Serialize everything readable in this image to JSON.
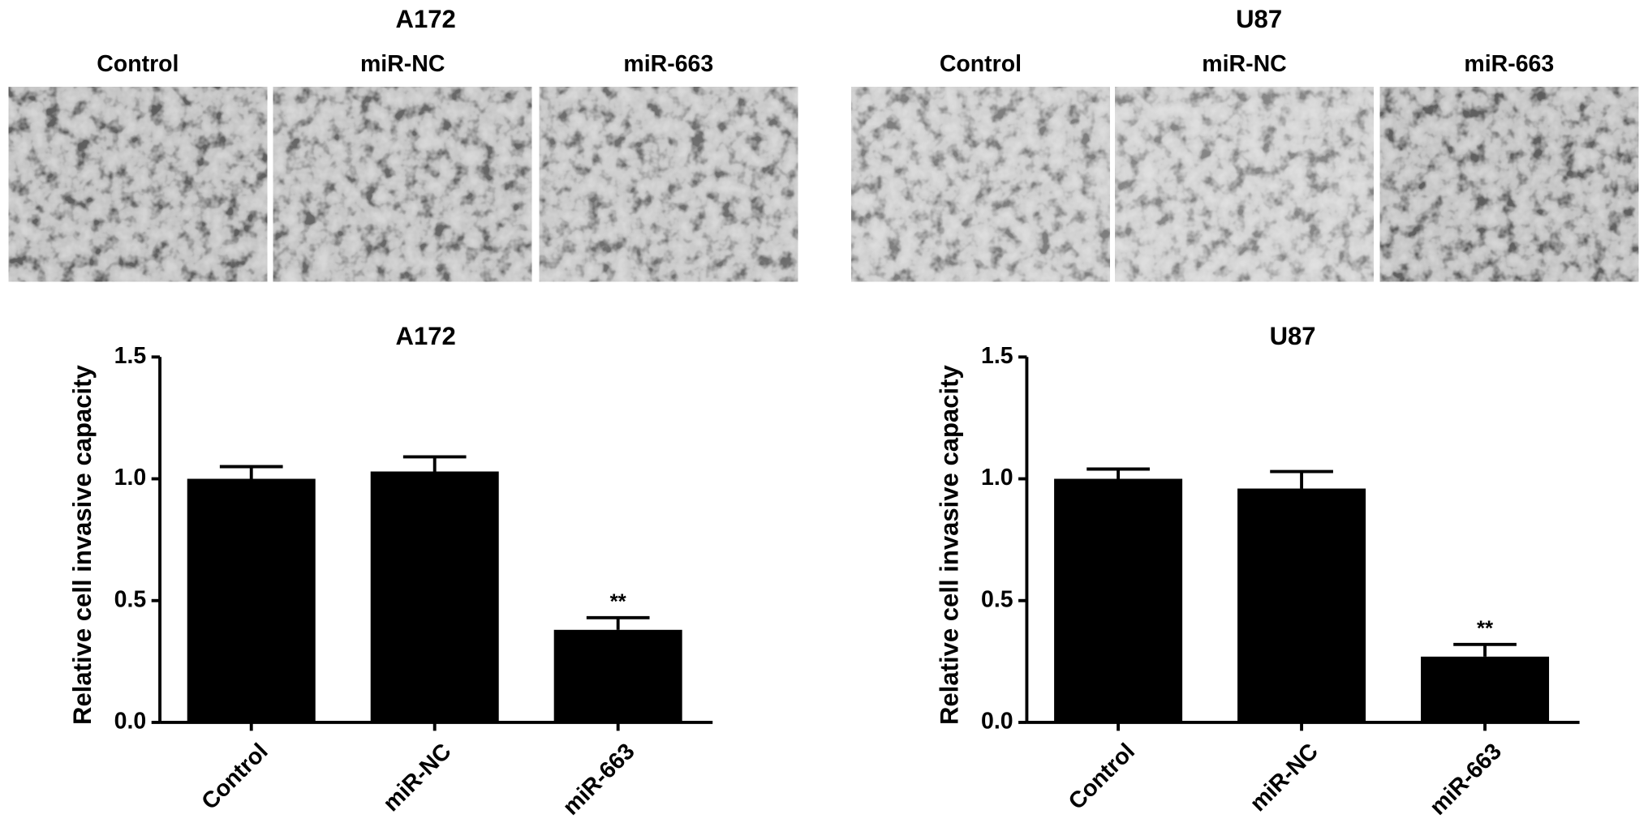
{
  "micrographs": [
    {
      "title": "A172",
      "labels": [
        "Control",
        "miR-NC",
        "miR-663"
      ]
    },
    {
      "title": "U87",
      "labels": [
        "Control",
        "miR-NC",
        "miR-663"
      ]
    }
  ],
  "chart_data": [
    {
      "type": "bar",
      "title": "A172",
      "y_label": "Relative cell invasive capacity",
      "categories": [
        "Control",
        "miR-NC",
        "miR-663"
      ],
      "values": [
        1.0,
        1.03,
        0.38
      ],
      "errors": [
        0.05,
        0.06,
        0.05
      ],
      "color": "#000000",
      "ylim": [
        0,
        1.5
      ],
      "yticks": [
        {
          "value": 0,
          "label": "0.0"
        },
        {
          "value": 0.5,
          "label": "0.5"
        },
        {
          "value": 1,
          "label": "1.0"
        },
        {
          "value": 1.5,
          "label": "1.5"
        }
      ],
      "annotations": [
        {
          "text": "**",
          "category": "miR-663"
        }
      ]
    },
    {
      "type": "bar",
      "title": "U87",
      "y_label": "Relative cell invasive capacity",
      "categories": [
        "Control",
        "miR-NC",
        "miR-663"
      ],
      "values": [
        1.0,
        0.96,
        0.27
      ],
      "errors": [
        0.04,
        0.07,
        0.05
      ],
      "color": "#000000",
      "ylim": [
        0,
        1.5
      ],
      "yticks": [
        {
          "value": 0,
          "label": "0.0"
        },
        {
          "value": 0.5,
          "label": "0.5"
        },
        {
          "value": 1,
          "label": "1.0"
        },
        {
          "value": 1.5,
          "label": "1.5"
        }
      ],
      "annotations": [
        {
          "text": "**",
          "category": "miR-663"
        }
      ]
    }
  ]
}
